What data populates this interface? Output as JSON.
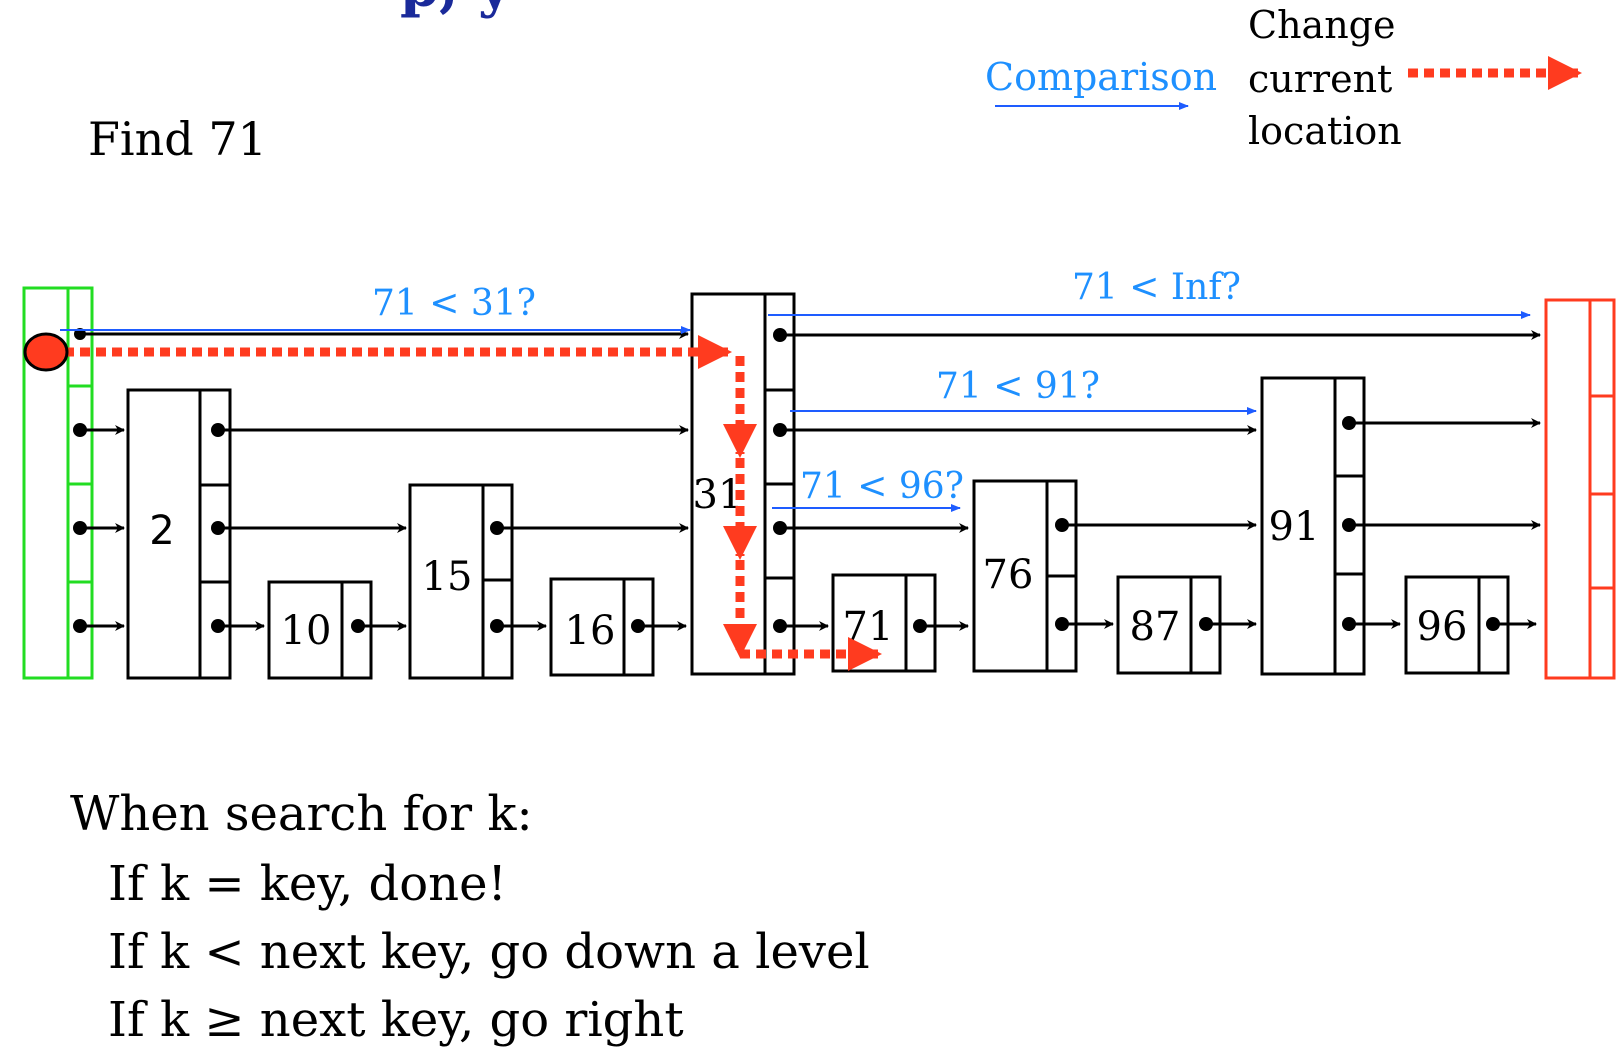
{
  "header_fragment": "p, y",
  "find_label": "Find 71",
  "legend": {
    "comparison_label": "Comparison",
    "change_lines": [
      "Change",
      "current",
      "location"
    ],
    "colors": {
      "comparison": "#1e90ff",
      "change": "#ff3b1f"
    }
  },
  "nodes": {
    "n2": "2",
    "n10": "10",
    "n15": "15",
    "n16": "16",
    "n31": "31",
    "n71": "71",
    "n76": "76",
    "n87": "87",
    "n91": "91",
    "n96": "96"
  },
  "comparisons": {
    "c31": "71 < 31?",
    "cinf": "71 < Inf?",
    "c91": "71 < 91?",
    "c96": "71 < 96?"
  },
  "rules": {
    "intro": "When search for k:",
    "r1": "If k = key, done!",
    "r2": "If k < next key, go down a level",
    "r3": "If k ≥ next key, go right"
  },
  "colors": {
    "head": "#22dd22",
    "tail": "#ff3b1f",
    "comparison": "#1e5cff",
    "comparison_text": "#1e90ff",
    "path": "#ff3b1f",
    "title": "#1a2a9a"
  }
}
